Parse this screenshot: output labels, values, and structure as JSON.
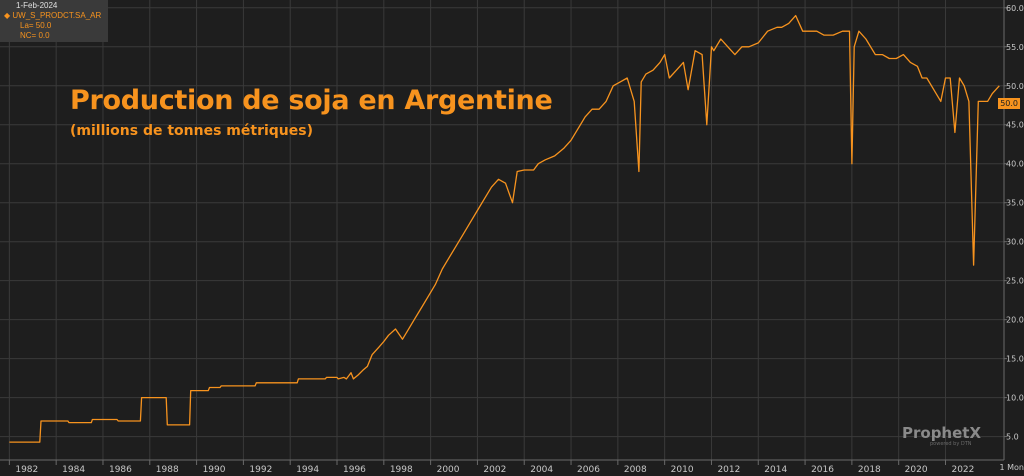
{
  "legend": {
    "date": "1-Feb-2024",
    "series_code": "UW_S_PRODCT.SA_AR",
    "last_label": "La= 50.0",
    "change_label": "NC= 0.0"
  },
  "last_value_badge": "50.0",
  "brand": {
    "name": "ProphetX",
    "tagline": "powered by DTN"
  },
  "unit_tag": "1 Mon",
  "colors": {
    "background": "#1e1e1e",
    "line": "#f7931e",
    "grid": "#3a3a3a",
    "axis_text": "#c8c8c8"
  },
  "chart_data": {
    "type": "line",
    "title": "Production de soja en Argentine",
    "subtitle": "(millions de tonnes métriques)",
    "xlabel": "",
    "ylabel": "",
    "xlim": [
      1981.6,
      2024.5
    ],
    "ylim": [
      2.0,
      61.0
    ],
    "x_ticks": [
      "1982",
      "1984",
      "1986",
      "1988",
      "1990",
      "1992",
      "1994",
      "1996",
      "1998",
      "2000",
      "2002",
      "2004",
      "2006",
      "2008",
      "2010",
      "2012",
      "2014",
      "2016",
      "2018",
      "2020",
      "2022"
    ],
    "y_ticks": [
      "5.0",
      "10.0",
      "15.0",
      "20.0",
      "25.0",
      "30.0",
      "35.0",
      "40.0",
      "45.0",
      "50.0",
      "55.0",
      "60.0"
    ],
    "grid": true,
    "y_axis_position": "right",
    "series": [
      {
        "name": "UW_S_PRODCT.SA_AR",
        "x": [
          1982.0,
          1983.3,
          1983.35,
          1984.5,
          1984.55,
          1985.5,
          1985.55,
          1986.6,
          1986.65,
          1987.6,
          1987.65,
          1988.7,
          1988.75,
          1989.7,
          1989.75,
          1990.5,
          1990.55,
          1991.0,
          1991.05,
          1992.5,
          1992.55,
          1994.3,
          1994.35,
          1995.5,
          1995.55,
          1996.0,
          1996.05,
          1996.3,
          1996.4,
          1996.6,
          1996.7,
          1996.9,
          1997.1,
          1997.3,
          1997.5,
          1997.8,
          1998.0,
          1998.2,
          1998.5,
          1998.8,
          1999.0,
          1999.3,
          1999.6,
          1999.9,
          2000.2,
          2000.5,
          2000.8,
          2001.1,
          2001.4,
          2001.7,
          2002.0,
          2002.3,
          2002.6,
          2002.9,
          2003.2,
          2003.5,
          2003.7,
          2004.0,
          2004.2,
          2004.4,
          2004.6,
          2004.9,
          2005.3,
          2005.7,
          2006.0,
          2006.3,
          2006.6,
          2006.9,
          2007.2,
          2007.5,
          2007.8,
          2008.1,
          2008.4,
          2008.7,
          2008.9,
          2009.0,
          2009.2,
          2009.5,
          2009.8,
          2010.0,
          2010.2,
          2010.5,
          2010.8,
          2011.0,
          2011.3,
          2011.6,
          2011.8,
          2012.0,
          2012.1,
          2012.2,
          2012.4,
          2012.7,
          2013.0,
          2013.3,
          2013.6,
          2014.0,
          2014.4,
          2014.8,
          2015.0,
          2015.3,
          2015.6,
          2015.9,
          2016.1,
          2016.3,
          2016.5,
          2016.8,
          2017.2,
          2017.6,
          2017.9,
          2018.0,
          2018.1,
          2018.3,
          2018.6,
          2019.0,
          2019.3,
          2019.6,
          2019.9,
          2020.2,
          2020.5,
          2020.8,
          2021.0,
          2021.2,
          2021.5,
          2021.8,
          2022.0,
          2022.2,
          2022.4,
          2022.6,
          2022.8,
          2023.0,
          2023.2,
          2023.4,
          2023.6,
          2023.8,
          2024.0,
          2024.3
        ],
        "values": [
          4.3,
          4.3,
          7.0,
          7.0,
          6.8,
          6.8,
          7.2,
          7.2,
          7.0,
          7.0,
          10.0,
          10.0,
          6.5,
          6.5,
          10.9,
          10.9,
          11.3,
          11.3,
          11.5,
          11.5,
          11.9,
          11.9,
          12.4,
          12.4,
          12.6,
          12.6,
          12.4,
          12.6,
          12.4,
          13.2,
          12.4,
          12.9,
          13.5,
          14.0,
          15.5,
          16.5,
          17.2,
          18.0,
          18.8,
          17.5,
          18.5,
          20.0,
          21.5,
          23.0,
          24.5,
          26.5,
          28.0,
          29.5,
          31.0,
          32.5,
          34.0,
          35.5,
          37.0,
          38.0,
          37.5,
          35.0,
          39.0,
          39.2,
          39.2,
          39.2,
          40.0,
          40.5,
          41.0,
          42.0,
          43.0,
          44.5,
          46.0,
          47.0,
          47.0,
          48.0,
          50.0,
          50.5,
          51.0,
          48.0,
          39.0,
          50.5,
          51.5,
          52.0,
          53.0,
          54.0,
          51.0,
          52.0,
          53.0,
          49.5,
          54.5,
          54.0,
          45.0,
          55.0,
          54.5,
          55.0,
          56.0,
          55.0,
          54.0,
          55.0,
          55.0,
          55.5,
          57.0,
          57.5,
          57.5,
          58.0,
          59.0,
          57.0,
          57.0,
          57.0,
          57.0,
          56.5,
          56.5,
          57.0,
          57.0,
          40.0,
          55.0,
          57.0,
          56.0,
          54.0,
          54.0,
          53.5,
          53.5,
          54.0,
          53.0,
          52.5,
          51.0,
          51.0,
          49.5,
          48.0,
          51.0,
          51.0,
          44.0,
          51.0,
          50.0,
          48.0,
          27.0,
          48.0,
          48.0,
          48.0,
          49.0,
          50.0
        ]
      }
    ]
  }
}
